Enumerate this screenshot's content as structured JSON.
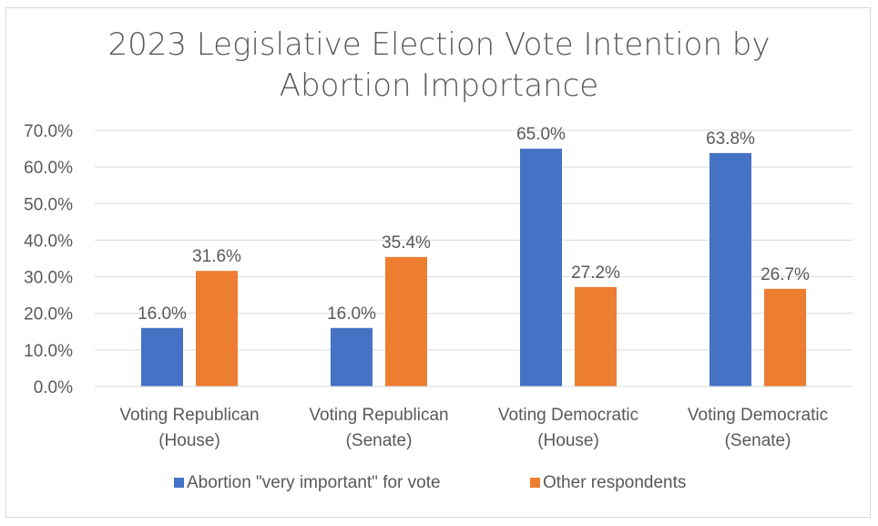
{
  "chart_data": {
    "type": "bar",
    "title_lines": [
      "2023 Legislative Election Vote Intention by",
      "Abortion Importance"
    ],
    "categories": [
      [
        "Voting Republican",
        "(House)"
      ],
      [
        "Voting Republican",
        "(Senate)"
      ],
      [
        "Voting Democratic",
        "(House)"
      ],
      [
        "Voting Democratic",
        "(Senate)"
      ]
    ],
    "series": [
      {
        "name": "Abortion \"very important\" for vote",
        "color": "#4472c4",
        "values": [
          16.0,
          16.0,
          65.0,
          63.8
        ],
        "labels": [
          "16.0%",
          "16.0%",
          "65.0%",
          "63.8%"
        ]
      },
      {
        "name": "Other respondents",
        "color": "#ed7d31",
        "values": [
          31.6,
          35.4,
          27.2,
          26.7
        ],
        "labels": [
          "31.6%",
          "35.4%",
          "27.2%",
          "26.7%"
        ]
      }
    ],
    "ylim": [
      0,
      70
    ],
    "yticks": [
      0,
      10,
      20,
      30,
      40,
      50,
      60,
      70
    ],
    "ytick_labels": [
      "0.0%",
      "10.0%",
      "20.0%",
      "30.0%",
      "40.0%",
      "50.0%",
      "60.0%",
      "70.0%"
    ],
    "grid": true,
    "gridline_color": "#d9d9d9",
    "legend_position": "bottom"
  }
}
